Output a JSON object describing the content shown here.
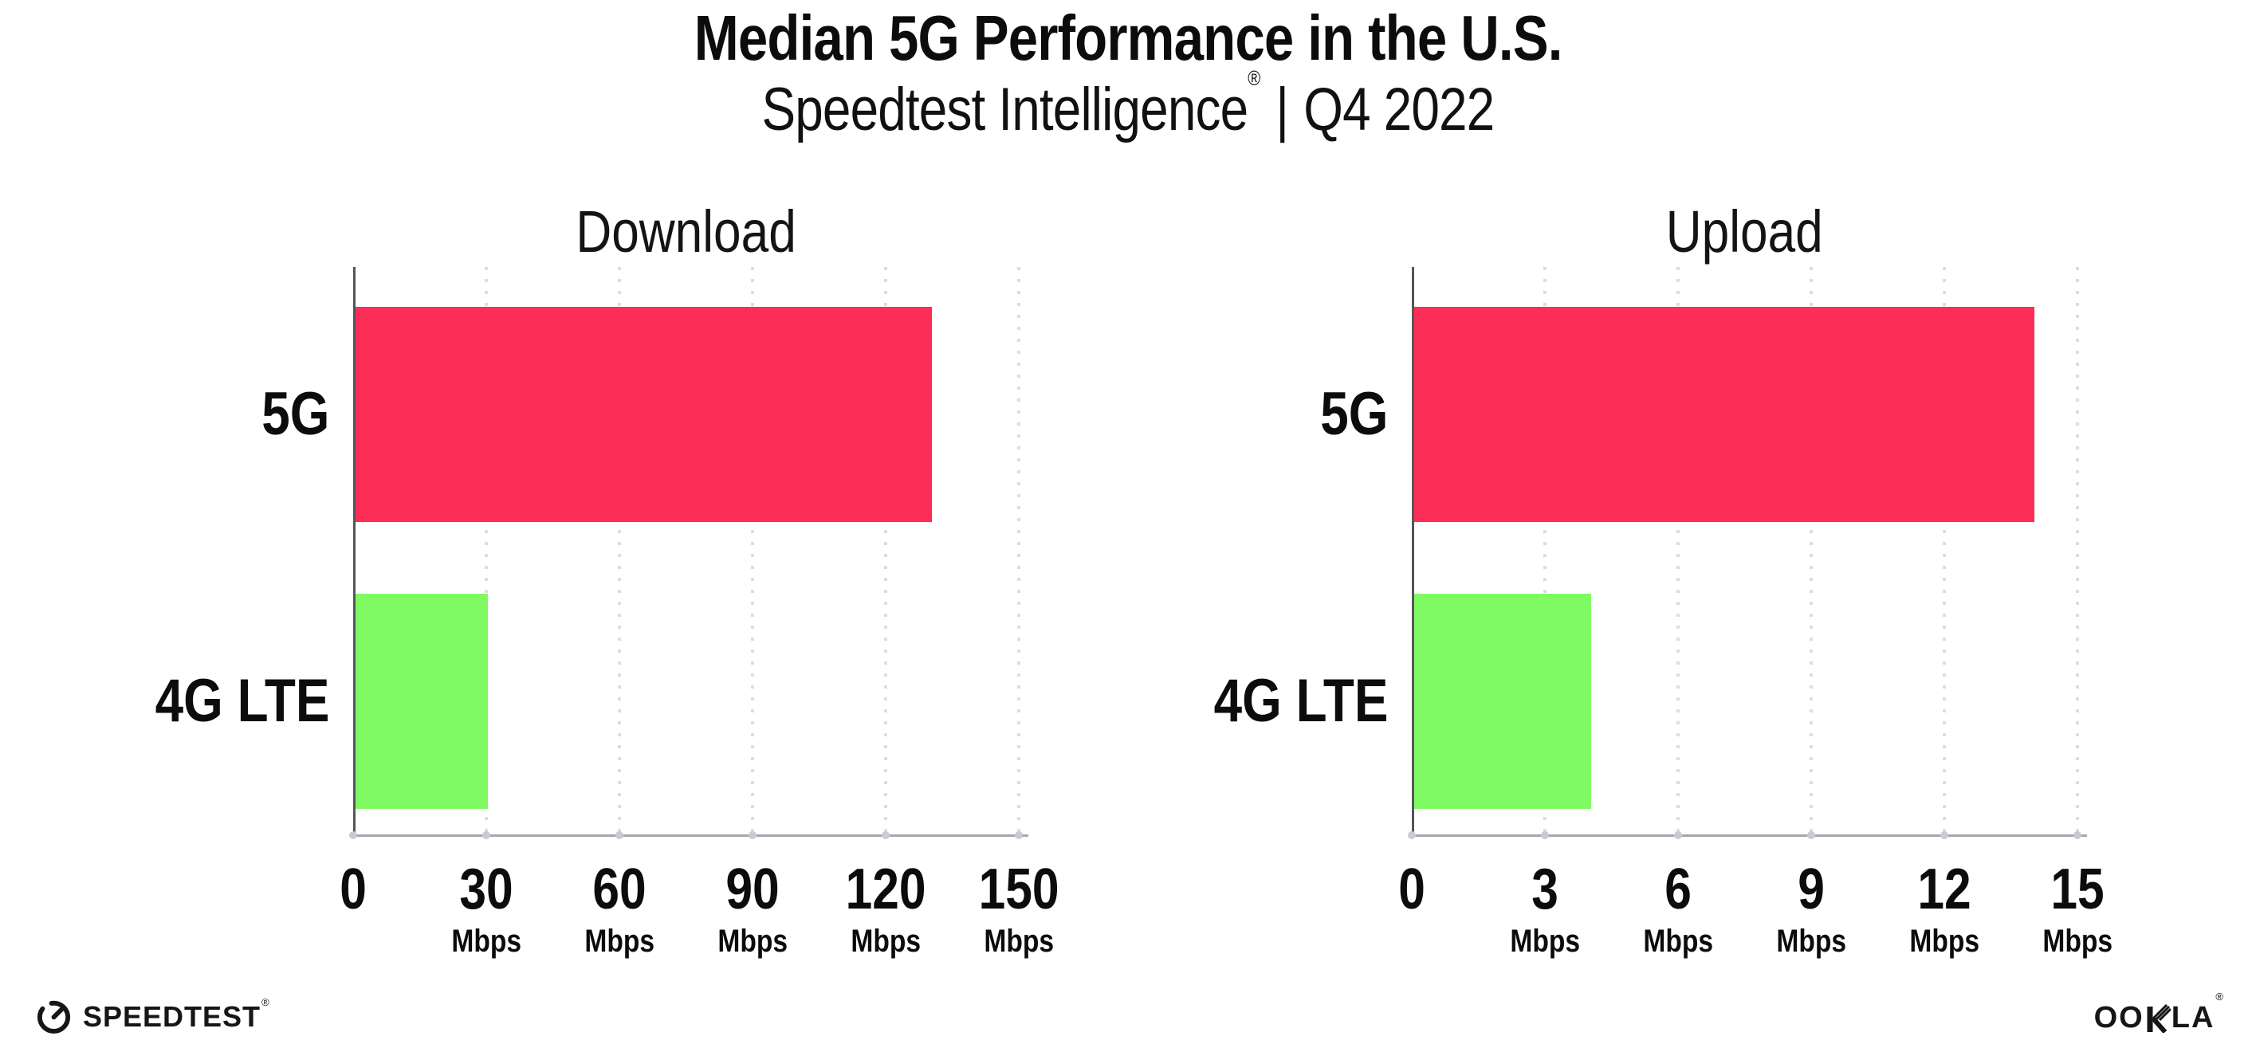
{
  "header": {
    "title": "Median 5G Performance in the U.S.",
    "subtitle_product": "Speedtest Intelligence",
    "subtitle_mark": "®",
    "subtitle_separator": "|",
    "subtitle_period": "Q4 2022"
  },
  "chart_data": [
    {
      "type": "bar",
      "orientation": "horizontal",
      "title": "Download",
      "categories": [
        "5G",
        "4G LTE"
      ],
      "values": [
        130,
        30
      ],
      "unit": "Mbps",
      "xticks": [
        0,
        30,
        60,
        90,
        120,
        150
      ],
      "xlim": [
        0,
        150
      ],
      "grid": "vertical-dotted",
      "legend": "none",
      "bar_colors": [
        "#fc2d56",
        "#80fa63"
      ]
    },
    {
      "type": "bar",
      "orientation": "horizontal",
      "title": "Upload",
      "categories": [
        "5G",
        "4G LTE"
      ],
      "values": [
        14,
        4
      ],
      "unit": "Mbps",
      "xticks": [
        0,
        3,
        6,
        9,
        12,
        15
      ],
      "xlim": [
        0,
        15
      ],
      "grid": "vertical-dotted",
      "legend": "none",
      "bar_colors": [
        "#fc2d56",
        "#80fa63"
      ]
    }
  ],
  "footer": {
    "speedtest_label": "SPEEDTEST",
    "speedtest_mark": "®",
    "ookla_oo": "OO",
    "ookla_la": "LA",
    "ookla_mark": "®"
  },
  "colors": {
    "bar_5g": "#fc2d56",
    "bar_4g_lte": "#80fa63",
    "y_axis": "#55555a",
    "x_axis": "#a6a6ac",
    "gridline": "#dcdde6",
    "text": "#0c0c0d"
  }
}
